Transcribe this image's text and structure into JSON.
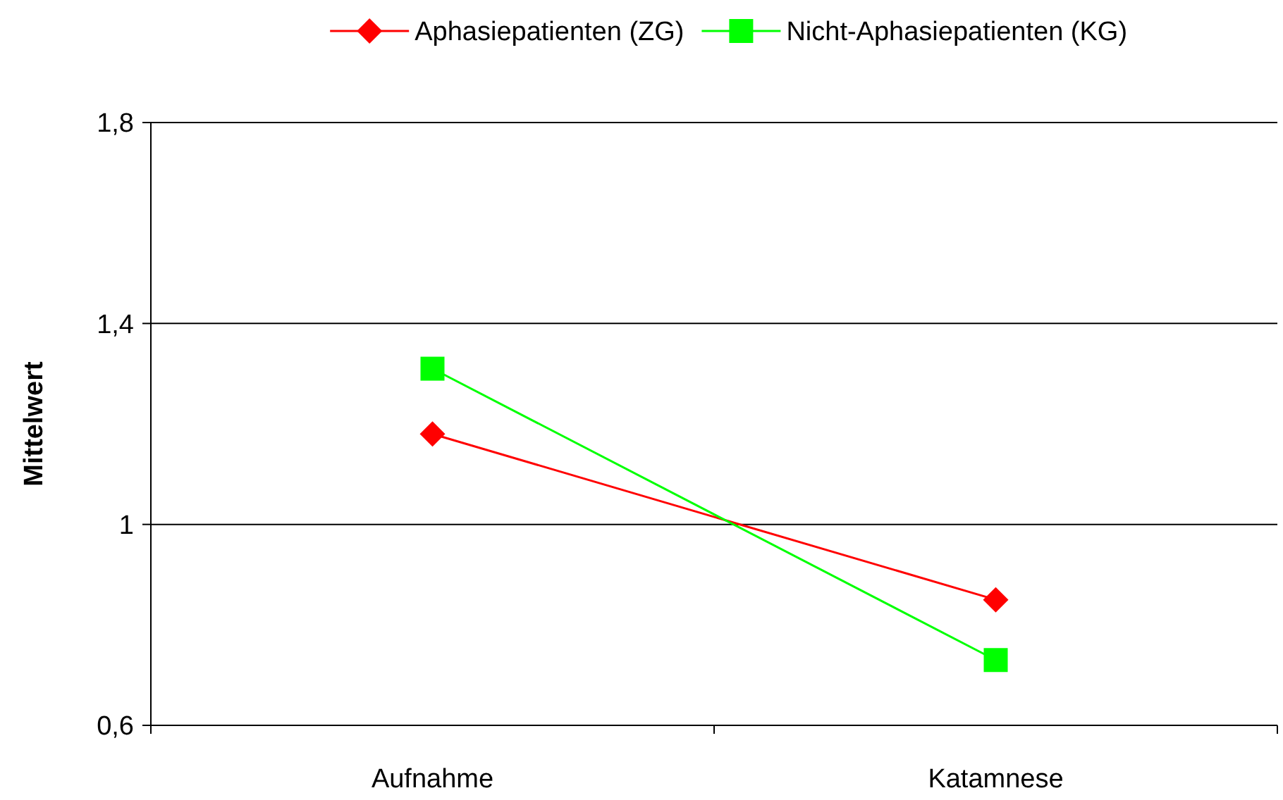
{
  "chart_data": {
    "type": "line",
    "ylabel": "Mittelwert",
    "categories": [
      "Aufnahme",
      "Katamnese"
    ],
    "series": [
      {
        "name": "Aphasiepatienten (ZG)",
        "color": "#ff0000",
        "values": [
          1.18,
          0.85
        ],
        "marker": "diamond"
      },
      {
        "name": "Nicht-Aphasiepatienten (KG)",
        "color": "#00ff00",
        "values": [
          1.31,
          0.73
        ],
        "marker": "square"
      }
    ],
    "ylim": [
      0.6,
      1.8
    ],
    "yticks": [
      {
        "value": 0.6,
        "label": "0,6"
      },
      {
        "value": 1,
        "label": "1"
      },
      {
        "value": 1.4,
        "label": "1,4"
      },
      {
        "value": 1.8,
        "label": "1,8"
      }
    ],
    "grid": "y",
    "legend": "top",
    "line_style": "solid"
  }
}
